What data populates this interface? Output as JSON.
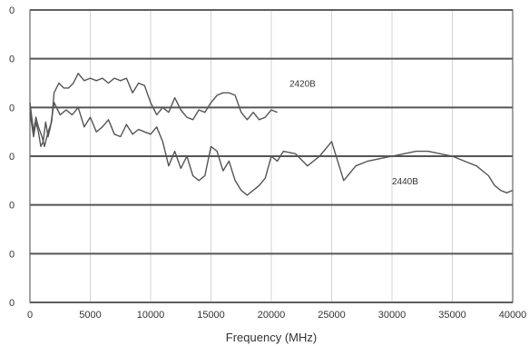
{
  "chart_data": {
    "type": "line",
    "title": "",
    "xlabel": "Frequency (MHz)",
    "ylabel": "",
    "xlim": [
      0,
      40000
    ],
    "ylim": [
      0,
      6
    ],
    "x_ticks": [
      0,
      5000,
      10000,
      15000,
      20000,
      25000,
      30000,
      35000,
      40000
    ],
    "x_tick_labels": [
      "0",
      "5000",
      "10000",
      "15000",
      "20000",
      "25000",
      "30000",
      "35000",
      "40000"
    ],
    "y_ticks": [
      0,
      1,
      2,
      3,
      4,
      5,
      6
    ],
    "y_tick_labels": [
      "0",
      "0",
      "0",
      "0",
      "0",
      "0",
      "0"
    ],
    "grid": true,
    "legend": "none (series labelled inline)",
    "series": [
      {
        "name": "2420B",
        "color": "#555555",
        "points": [
          [
            0,
            4.1
          ],
          [
            300,
            3.5
          ],
          [
            500,
            3.8
          ],
          [
            700,
            3.6
          ],
          [
            1000,
            3.4
          ],
          [
            1200,
            3.2
          ],
          [
            1500,
            3.5
          ],
          [
            1800,
            3.7
          ],
          [
            2000,
            4.3
          ],
          [
            2400,
            4.5
          ],
          [
            2800,
            4.4
          ],
          [
            3200,
            4.4
          ],
          [
            3600,
            4.5
          ],
          [
            4000,
            4.7
          ],
          [
            4500,
            4.55
          ],
          [
            5000,
            4.6
          ],
          [
            5500,
            4.55
          ],
          [
            6000,
            4.6
          ],
          [
            6500,
            4.5
          ],
          [
            7000,
            4.6
          ],
          [
            7500,
            4.55
          ],
          [
            8000,
            4.6
          ],
          [
            8500,
            4.3
          ],
          [
            9000,
            4.5
          ],
          [
            9500,
            4.45
          ],
          [
            10000,
            4.1
          ],
          [
            10500,
            3.85
          ],
          [
            11000,
            4.0
          ],
          [
            11500,
            3.9
          ],
          [
            12000,
            4.2
          ],
          [
            12500,
            3.95
          ],
          [
            13000,
            3.8
          ],
          [
            13500,
            3.75
          ],
          [
            14000,
            3.95
          ],
          [
            14500,
            3.9
          ],
          [
            15000,
            4.1
          ],
          [
            15500,
            4.25
          ],
          [
            16000,
            4.3
          ],
          [
            16500,
            4.3
          ],
          [
            17000,
            4.25
          ],
          [
            17500,
            3.9
          ],
          [
            18000,
            3.75
          ],
          [
            18500,
            3.9
          ],
          [
            19000,
            3.75
          ],
          [
            19500,
            3.8
          ],
          [
            20000,
            3.95
          ],
          [
            20500,
            3.9
          ]
        ]
      },
      {
        "name": "2440B",
        "color": "#555555",
        "points": [
          [
            0,
            3.9
          ],
          [
            300,
            3.4
          ],
          [
            500,
            3.7
          ],
          [
            700,
            3.5
          ],
          [
            900,
            3.2
          ],
          [
            1100,
            3.3
          ],
          [
            1300,
            3.7
          ],
          [
            1500,
            3.4
          ],
          [
            1700,
            3.6
          ],
          [
            2000,
            4.1
          ],
          [
            2500,
            3.85
          ],
          [
            3000,
            3.95
          ],
          [
            3500,
            3.85
          ],
          [
            4000,
            4.0
          ],
          [
            4500,
            3.6
          ],
          [
            5000,
            3.8
          ],
          [
            5500,
            3.5
          ],
          [
            6000,
            3.6
          ],
          [
            6500,
            3.75
          ],
          [
            7000,
            3.45
          ],
          [
            7500,
            3.4
          ],
          [
            8000,
            3.65
          ],
          [
            8500,
            3.45
          ],
          [
            9000,
            3.55
          ],
          [
            9500,
            3.5
          ],
          [
            10000,
            3.45
          ],
          [
            10500,
            3.6
          ],
          [
            11000,
            3.3
          ],
          [
            11500,
            2.8
          ],
          [
            12000,
            3.1
          ],
          [
            12500,
            2.75
          ],
          [
            13000,
            3.0
          ],
          [
            13500,
            2.6
          ],
          [
            14000,
            2.5
          ],
          [
            14500,
            2.6
          ],
          [
            15000,
            3.2
          ],
          [
            15500,
            3.1
          ],
          [
            16000,
            2.7
          ],
          [
            16500,
            2.9
          ],
          [
            17000,
            2.5
          ],
          [
            17500,
            2.3
          ],
          [
            18000,
            2.2
          ],
          [
            18500,
            2.3
          ],
          [
            19000,
            2.4
          ],
          [
            19500,
            2.55
          ],
          [
            20000,
            3.0
          ],
          [
            20500,
            2.9
          ],
          [
            21000,
            3.1
          ],
          [
            22000,
            3.05
          ],
          [
            23000,
            2.8
          ],
          [
            24000,
            3.0
          ],
          [
            25000,
            3.3
          ],
          [
            26000,
            2.5
          ],
          [
            27000,
            2.8
          ],
          [
            28000,
            2.9
          ],
          [
            29000,
            2.95
          ],
          [
            30000,
            3.0
          ],
          [
            31000,
            3.05
          ],
          [
            32000,
            3.1
          ],
          [
            33000,
            3.1
          ],
          [
            34000,
            3.05
          ],
          [
            35000,
            3.0
          ],
          [
            36000,
            2.9
          ],
          [
            37000,
            2.8
          ],
          [
            38000,
            2.6
          ],
          [
            38500,
            2.4
          ],
          [
            39000,
            2.3
          ],
          [
            39500,
            2.25
          ],
          [
            40000,
            2.3
          ]
        ]
      }
    ],
    "annotations": [
      {
        "text": "2420B",
        "x": 21500,
        "y": 4.5
      },
      {
        "text": "2440B",
        "x": 30000,
        "y": 2.5
      }
    ]
  }
}
